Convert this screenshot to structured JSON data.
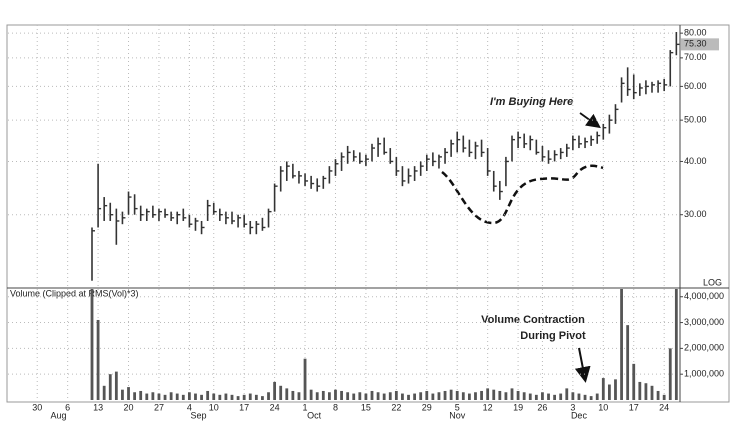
{
  "chart_data": [
    {
      "type": "hlc",
      "log": true,
      "grid": true,
      "color": "#333333",
      "scale_label": "LOG",
      "annotations": [
        "I'm Buying Here"
      ],
      "last_price": {
        "value": 75.3,
        "label": "75.30"
      },
      "ylim": [
        20.3,
        83.6
      ],
      "yticks": [
        {
          "value": 30,
          "label": "30.00"
        },
        {
          "value": 40,
          "label": "40.00"
        },
        {
          "value": 50,
          "label": "50.00"
        },
        {
          "value": 60,
          "label": "60.00"
        },
        {
          "value": 70,
          "label": "70.00"
        },
        {
          "value": 80,
          "label": "80.00"
        }
      ],
      "xlim": [
        -4.8,
        105.6
      ],
      "x": [
        9,
        10,
        11,
        12,
        13,
        14,
        15,
        16,
        17,
        18,
        19,
        20,
        21,
        22,
        23,
        24,
        25,
        26,
        27,
        28,
        29,
        30,
        31,
        32,
        33,
        34,
        35,
        36,
        37,
        38,
        39,
        40,
        41,
        42,
        43,
        44,
        45,
        46,
        47,
        48,
        49,
        50,
        51,
        52,
        53,
        54,
        55,
        56,
        57,
        58,
        59,
        60,
        61,
        62,
        63,
        64,
        65,
        66,
        67,
        68,
        69,
        70,
        71,
        72,
        73,
        74,
        75,
        76,
        77,
        78,
        79,
        80,
        81,
        82,
        83,
        84,
        85,
        86,
        87,
        88,
        89,
        90,
        91,
        92,
        93,
        94,
        95,
        96,
        97,
        98,
        99,
        100,
        101,
        102,
        103,
        104,
        105
      ],
      "high": [
        28,
        39.5,
        33,
        32,
        31,
        30.5,
        34,
        33.5,
        31.5,
        31,
        31.5,
        31,
        31,
        30.5,
        30.5,
        31,
        30,
        29.5,
        29,
        32.5,
        32,
        31,
        30.5,
        30.5,
        30,
        30,
        29,
        29,
        29.5,
        31,
        35.5,
        39,
        40,
        39.5,
        38,
        37.5,
        37,
        36.5,
        37,
        39,
        40.5,
        42,
        43.5,
        42.5,
        42,
        41.5,
        44,
        45.5,
        45.5,
        43,
        41,
        39,
        38.5,
        39,
        40,
        41.5,
        42,
        41.5,
        43,
        45,
        47,
        46,
        45,
        44.5,
        45,
        43,
        38,
        36,
        41,
        46,
        47,
        46.5,
        46,
        45,
        43.5,
        42.5,
        42.5,
        43,
        44,
        46,
        46,
        45.5,
        46,
        47,
        49,
        51.5,
        54.5,
        63,
        66.5,
        64,
        61,
        62,
        61.5,
        62,
        62.5,
        73,
        80.5
      ],
      "low": [
        21,
        28,
        29,
        29,
        25.5,
        28.5,
        30,
        30,
        29,
        29,
        29.5,
        29,
        29.5,
        29,
        28.5,
        29,
        28,
        27.5,
        27,
        29,
        30,
        29,
        28.5,
        28.5,
        28,
        28,
        27,
        27,
        27.5,
        28,
        30.5,
        34,
        36,
        36.5,
        35.5,
        35,
        34.5,
        34,
        34.5,
        35.5,
        37,
        38,
        39.5,
        40,
        39.5,
        39,
        40,
        41,
        41.5,
        39.5,
        37,
        35,
        35.5,
        36,
        37,
        38,
        39,
        38.5,
        39.5,
        41,
        42,
        42,
        41,
        40.5,
        41,
        37,
        34,
        32.5,
        35,
        40,
        43,
        43,
        42.5,
        41.5,
        40,
        39.5,
        40,
        40.5,
        41,
        42.5,
        43,
        43,
        43.5,
        44,
        45,
        46.5,
        49,
        55,
        57,
        56,
        57,
        57.5,
        58,
        58,
        58.5,
        60,
        71
      ],
      "close": [
        27.5,
        31,
        31.5,
        30,
        29,
        29.5,
        33,
        31,
        30,
        30.5,
        30,
        30.5,
        30,
        29.5,
        30,
        29.5,
        28.5,
        29,
        28,
        31.5,
        30.5,
        30,
        29.5,
        29,
        29.5,
        28.5,
        28,
        28.5,
        28,
        30.5,
        35,
        38,
        39,
        37,
        37,
        36,
        35.5,
        35,
        36.5,
        38,
        39.5,
        41,
        42,
        41,
        40,
        40.5,
        43,
        44,
        42,
        40,
        38,
        36,
        37,
        38,
        39,
        40.5,
        40,
        41,
        42,
        44,
        45,
        43,
        42,
        43.5,
        42,
        38,
        35,
        34,
        40,
        45,
        45.5,
        44,
        45,
        42,
        41,
        40.5,
        41.5,
        42,
        43,
        45,
        44,
        44.5,
        45,
        46,
        48,
        50,
        53,
        61,
        59,
        58,
        59.5,
        60,
        60.5,
        61,
        60.5,
        72,
        75.3
      ]
    },
    {
      "type": "bar",
      "title": "Volume (Clipped at RMS(Vol)*3)",
      "color": "#555555",
      "annotations": [
        "Volume Contraction",
        "During Pivot"
      ],
      "ylim": [
        0,
        4300000
      ],
      "yticks": [
        {
          "value": 1000000,
          "label": "1,000,000"
        },
        {
          "value": 2000000,
          "label": "2,000,000"
        },
        {
          "value": 3000000,
          "label": "3,000,000"
        },
        {
          "value": 4000000,
          "label": "4,000,000"
        }
      ],
      "xlim": [
        -4.8,
        105.6
      ],
      "xticks": [
        {
          "value": 0,
          "label": "30"
        },
        {
          "value": 5,
          "label": "6"
        },
        {
          "value": 10,
          "label": "13"
        },
        {
          "value": 15,
          "label": "20"
        },
        {
          "value": 20,
          "label": "27"
        },
        {
          "value": 25,
          "label": "4"
        },
        {
          "value": 29,
          "label": "10"
        },
        {
          "value": 34,
          "label": "17"
        },
        {
          "value": 39,
          "label": "24"
        },
        {
          "value": 44,
          "label": "1"
        },
        {
          "value": 49,
          "label": "8"
        },
        {
          "value": 54,
          "label": "15"
        },
        {
          "value": 59,
          "label": "22"
        },
        {
          "value": 64,
          "label": "29"
        },
        {
          "value": 69,
          "label": "5"
        },
        {
          "value": 74,
          "label": "12"
        },
        {
          "value": 79,
          "label": "19"
        },
        {
          "value": 83,
          "label": "26"
        },
        {
          "value": 88,
          "label": "3"
        },
        {
          "value": 93,
          "label": "10"
        },
        {
          "value": 98,
          "label": "17"
        },
        {
          "value": 103,
          "label": "24"
        }
      ],
      "xmonths": [
        {
          "value": 3.5,
          "label": "Aug"
        },
        {
          "value": 26.5,
          "label": "Sep"
        },
        {
          "value": 45.5,
          "label": "Oct"
        },
        {
          "value": 69,
          "label": "Nov"
        },
        {
          "value": 89,
          "label": "Dec"
        }
      ],
      "x": [
        9,
        10,
        11,
        12,
        13,
        14,
        15,
        16,
        17,
        18,
        19,
        20,
        21,
        22,
        23,
        24,
        25,
        26,
        27,
        28,
        29,
        30,
        31,
        32,
        33,
        34,
        35,
        36,
        37,
        38,
        39,
        40,
        41,
        42,
        43,
        44,
        45,
        46,
        47,
        48,
        49,
        50,
        51,
        52,
        53,
        54,
        55,
        56,
        57,
        58,
        59,
        60,
        61,
        62,
        63,
        64,
        65,
        66,
        67,
        68,
        69,
        70,
        71,
        72,
        73,
        74,
        75,
        76,
        77,
        78,
        79,
        80,
        81,
        82,
        83,
        84,
        85,
        86,
        87,
        88,
        89,
        90,
        91,
        92,
        93,
        94,
        95,
        96,
        97,
        98,
        99,
        100,
        101,
        102,
        103,
        104,
        105
      ],
      "values": [
        4400000,
        3100000,
        550000,
        1000000,
        1100000,
        400000,
        500000,
        300000,
        350000,
        250000,
        300000,
        250000,
        200000,
        300000,
        250000,
        200000,
        300000,
        250000,
        200000,
        350000,
        250000,
        200000,
        250000,
        200000,
        150000,
        200000,
        250000,
        200000,
        150000,
        300000,
        700000,
        550000,
        450000,
        350000,
        300000,
        1600000,
        400000,
        300000,
        350000,
        300000,
        400000,
        350000,
        300000,
        250000,
        300000,
        250000,
        350000,
        300000,
        250000,
        300000,
        350000,
        250000,
        200000,
        250000,
        300000,
        350000,
        250000,
        300000,
        350000,
        400000,
        350000,
        300000,
        250000,
        300000,
        350000,
        450000,
        400000,
        350000,
        300000,
        450000,
        350000,
        300000,
        250000,
        200000,
        300000,
        250000,
        200000,
        250000,
        450000,
        300000,
        250000,
        200000,
        150000,
        250000,
        850000,
        600000,
        800000,
        4400000,
        2900000,
        1400000,
        700000,
        650000,
        550000,
        350000,
        200000,
        2000000,
        4400000
      ]
    }
  ]
}
